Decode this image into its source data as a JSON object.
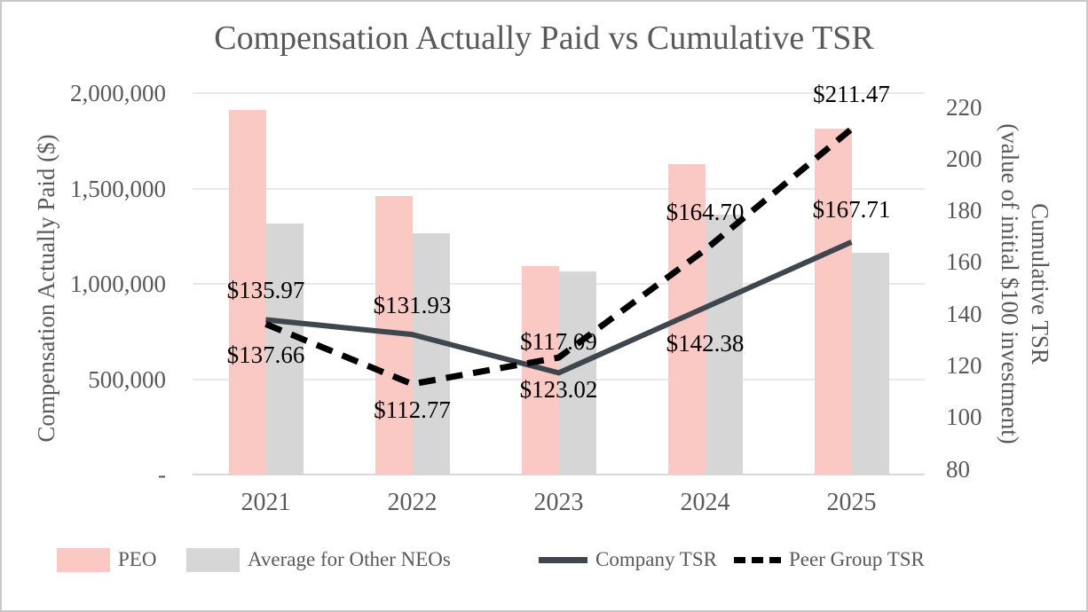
{
  "chart_data": {
    "type": "combo-bar-line",
    "title": "Compensation Actually Paid vs Cumulative TSR",
    "categories": [
      "2021",
      "2022",
      "2023",
      "2024",
      "2025"
    ],
    "bar_series": [
      {
        "name": "PEO",
        "color": "#fac9c4",
        "axis": "left",
        "values": [
          1910000,
          1460000,
          1095000,
          1630000,
          1815000
        ]
      },
      {
        "name": "Average for Other NEOs",
        "color": "#d6d6d6",
        "axis": "left",
        "values": [
          1315000,
          1265000,
          1065000,
          1365000,
          1165000
        ]
      }
    ],
    "line_series": [
      {
        "name": "Company TSR",
        "style": "solid",
        "color": "#40464e",
        "axis": "right",
        "values": [
          137.66,
          131.93,
          117.09,
          142.38,
          167.71
        ],
        "labels": [
          "$137.66",
          "$131.93",
          "$117.09",
          "$142.38",
          "$167.71"
        ],
        "label_dy": [
          40,
          -33,
          -35,
          40,
          -37
        ]
      },
      {
        "name": "Peer Group TSR",
        "style": "dashed",
        "color": "#000000",
        "axis": "right",
        "values": [
          135.97,
          112.77,
          123.02,
          164.7,
          211.47
        ],
        "labels": [
          "$135.97",
          "$112.77",
          "$123.02",
          "$164.70",
          "$211.47"
        ],
        "label_dy": [
          -38,
          29,
          36,
          -43,
          -39
        ]
      }
    ],
    "left_axis": {
      "title": "Compensation Actually Paid ($)",
      "ticks": [
        "2,000,000",
        "1,500,000",
        "1,000,000",
        "500,000",
        "-"
      ],
      "tick_values": [
        2000000,
        1500000,
        1000000,
        500000,
        0
      ],
      "min": 0,
      "max": 2000000
    },
    "right_axis": {
      "title_line1": "Cumulative TSR",
      "title_line2": "(value of initial $100 investment)",
      "ticks": [
        220,
        200,
        180,
        160,
        140,
        120,
        100,
        80
      ],
      "min": 80,
      "max": 220
    },
    "grid": true,
    "legend_position": "bottom",
    "colors": {
      "text_gray": "#595959",
      "gridline": "#e9e9e9",
      "axis_line": "#d8d8d8"
    }
  }
}
